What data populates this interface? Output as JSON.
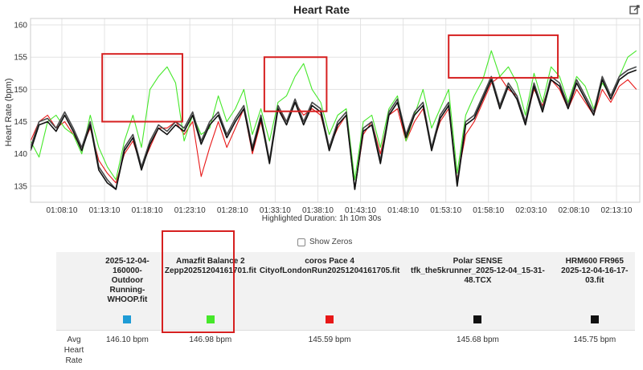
{
  "window": {
    "export_icon": "export-edit-icon"
  },
  "chart_data": {
    "type": "line",
    "title": "Heart Rate",
    "ylabel": "Heart Rate (bpm)",
    "xlabel": "Highlighted Duration: 1h 10m 30s",
    "ylim": [
      132.5,
      161
    ],
    "yticks": [
      135,
      140,
      145,
      150,
      155,
      160
    ],
    "xlim_minutes": [
      64.5,
      135.9
    ],
    "xticks": [
      "01:08:10",
      "01:13:10",
      "01:18:10",
      "01:23:10",
      "01:28:10",
      "01:33:10",
      "01:38:10",
      "01:43:10",
      "01:48:10",
      "01:53:10",
      "01:58:10",
      "02:03:10",
      "02:08:10",
      "02:13:10"
    ],
    "xtick_minutes": [
      68.17,
      73.17,
      78.17,
      83.17,
      88.17,
      93.17,
      98.17,
      103.17,
      108.17,
      113.17,
      118.17,
      123.17,
      128.17,
      133.17
    ],
    "grid": true,
    "legend": "table-below",
    "x": [
      64.5,
      65.5,
      66.5,
      67.5,
      68.5,
      69.5,
      70.5,
      71.5,
      72.5,
      73.5,
      74.5,
      75.5,
      76.5,
      77.5,
      78.5,
      79.5,
      80.5,
      81.5,
      82.5,
      83.5,
      84.5,
      85.5,
      86.5,
      87.5,
      88.5,
      89.5,
      90.5,
      91.5,
      92.5,
      93.5,
      94.5,
      95.5,
      96.5,
      97.5,
      98.5,
      99.5,
      100.5,
      101.5,
      102.5,
      103.5,
      104.5,
      105.5,
      106.5,
      107.5,
      108.5,
      109.5,
      110.5,
      111.5,
      112.5,
      113.5,
      114.5,
      115.5,
      116.5,
      117.5,
      118.5,
      119.5,
      120.5,
      121.5,
      122.5,
      123.5,
      124.5,
      125.5,
      126.5,
      127.5,
      128.5,
      129.5,
      130.5,
      131.5,
      132.5,
      133.5,
      134.5,
      135.5
    ],
    "series": [
      {
        "name": "2025-12-04-160000-Outdoor Running-WHOOP.fit",
        "color": "#1f9cd6",
        "values": [
          141,
          145,
          145.5,
          144,
          146.5,
          144,
          141,
          145,
          138,
          136,
          134.5,
          141,
          143,
          138,
          142,
          144.5,
          143.5,
          145,
          144,
          146.5,
          142,
          145,
          146.5,
          143,
          145.5,
          147.5,
          141,
          146,
          139,
          147.5,
          145,
          148.5,
          145,
          148,
          147,
          141,
          145,
          146.5,
          134.5,
          144,
          145,
          139,
          146.5,
          148.5,
          143,
          146.5,
          148,
          141,
          146,
          148,
          135.5,
          145,
          146,
          149,
          152,
          147.5,
          151,
          149,
          145,
          151,
          147,
          152,
          151,
          147.5,
          151.5,
          149,
          146.5,
          152,
          149,
          152,
          153,
          153.5
        ]
      },
      {
        "name": "Zepp20251204161701.fit",
        "color": "#46e82a",
        "values": [
          142,
          139.5,
          145,
          146,
          144,
          143,
          140,
          146,
          141,
          138,
          136,
          142,
          146,
          141,
          150,
          152,
          153.5,
          151,
          142,
          146,
          143,
          144,
          149,
          145,
          147,
          150,
          143,
          147,
          142,
          148,
          149,
          152,
          154,
          150,
          148,
          143,
          146,
          147,
          136,
          145,
          146,
          141,
          147,
          149,
          142,
          146,
          150,
          144,
          147,
          150,
          137,
          146,
          149,
          151.5,
          156,
          152,
          153.5,
          151,
          146,
          152.5,
          148,
          153.5,
          152,
          148,
          152,
          150.5,
          147,
          151,
          149,
          152,
          155,
          156
        ]
      },
      {
        "name": "CityofLondonRun20251204161705.fit",
        "color": "#e81818",
        "values": [
          142,
          145,
          146,
          144,
          145,
          143,
          141,
          144,
          139,
          137,
          135.5,
          140,
          142,
          138,
          141,
          144,
          144,
          145,
          143,
          145,
          136.5,
          141,
          145,
          141,
          144,
          147,
          140,
          145,
          139,
          147,
          145,
          148,
          146,
          147,
          146,
          141,
          144,
          146,
          134.5,
          143,
          145,
          140,
          146,
          147,
          142,
          145,
          147,
          141,
          145,
          147,
          136,
          143,
          145,
          148,
          151,
          152,
          150,
          149,
          145,
          150,
          147.5,
          151.5,
          150,
          147,
          150,
          148,
          146,
          150,
          148,
          150.5,
          151.5,
          150
        ]
      },
      {
        "name": "tfk_the5krunner_2025-12-04_15-31-48.TCX",
        "color": "#111111",
        "values": [
          140.5,
          144.5,
          145,
          143.5,
          146,
          143.5,
          140.5,
          144.5,
          137.5,
          135.5,
          134.5,
          140.5,
          142.5,
          137.5,
          141.5,
          144,
          143,
          144.5,
          143.5,
          146,
          141.5,
          144.5,
          146,
          142.5,
          145,
          147,
          140.5,
          145.5,
          138.5,
          147,
          144.5,
          148,
          144.5,
          147.5,
          146.5,
          140.5,
          144.5,
          146,
          134.5,
          143.5,
          144.5,
          138.5,
          146,
          148,
          142.5,
          146,
          147.5,
          140.5,
          145.5,
          147.5,
          135,
          144.5,
          145.5,
          148.5,
          151.5,
          147,
          150.5,
          148.5,
          144.5,
          150.5,
          146.5,
          151.5,
          150.5,
          147,
          151,
          148.5,
          146,
          151.5,
          148.5,
          151.5,
          152.5,
          153
        ]
      },
      {
        "name": "HRM600 FR965 2025-12-04-16-17-03.fit",
        "color": "#4a4a4a",
        "values": [
          141,
          145,
          145.5,
          144,
          146.5,
          144,
          141,
          145,
          138,
          136,
          134.5,
          141,
          143,
          138,
          142,
          144.5,
          143.5,
          145,
          144,
          146.5,
          142,
          145,
          146.5,
          143,
          145.5,
          147.5,
          141,
          146,
          139,
          147.5,
          145,
          148.5,
          145,
          148,
          147,
          141,
          145,
          146.5,
          134.5,
          144,
          145,
          139,
          146.5,
          148.5,
          143,
          146.5,
          148,
          141,
          146,
          148,
          135.5,
          145,
          146,
          149,
          152,
          147.5,
          151,
          149,
          145,
          151,
          147,
          152,
          151,
          147.5,
          151.5,
          149,
          146.5,
          152,
          149,
          152,
          153,
          153.5
        ]
      }
    ],
    "highlight_boxes": [
      {
        "x": [
          72.9,
          82.3
        ],
        "y": [
          145,
          155.5
        ]
      },
      {
        "x": [
          91.9,
          99.2
        ],
        "y": [
          146.6,
          155
        ]
      },
      {
        "x": [
          113.5,
          126.3
        ],
        "y": [
          151.8,
          158.4
        ]
      }
    ]
  },
  "controls": {
    "show_zeros_label": "Show Zeros",
    "show_zeros_checked": false
  },
  "summary_table": {
    "metric_label": "Avg Heart Rate",
    "columns": [
      {
        "title_line1": "2025-12-04-160000-",
        "title_line2": "Outdoor Running-",
        "title_line3": "WHOOP.fit",
        "color": "#1f9cd6",
        "avg": "146.10 bpm"
      },
      {
        "title_line1": "Amazfit Balance 2",
        "title_line2": "Zepp20251204161701.fit",
        "title_line3": "",
        "color": "#46e82a",
        "avg": "146.98 bpm"
      },
      {
        "title_line1": "coros Pace 4",
        "title_line2": "CityofLondonRun20251204161705.fit",
        "title_line3": "",
        "color": "#e81818",
        "avg": "145.59 bpm"
      },
      {
        "title_line1": "Polar SENSE",
        "title_line2": "tfk_the5krunner_2025-12-04_15-31-48.TCX",
        "title_line3": "",
        "color": "#111111",
        "avg": "145.68 bpm"
      },
      {
        "title_line1": "HRM600 FR965",
        "title_line2": "2025-12-04-16-17-03.fit",
        "title_line3": "",
        "color": "#111111",
        "avg": "145.75 bpm"
      }
    ],
    "highlight_column": 1
  }
}
